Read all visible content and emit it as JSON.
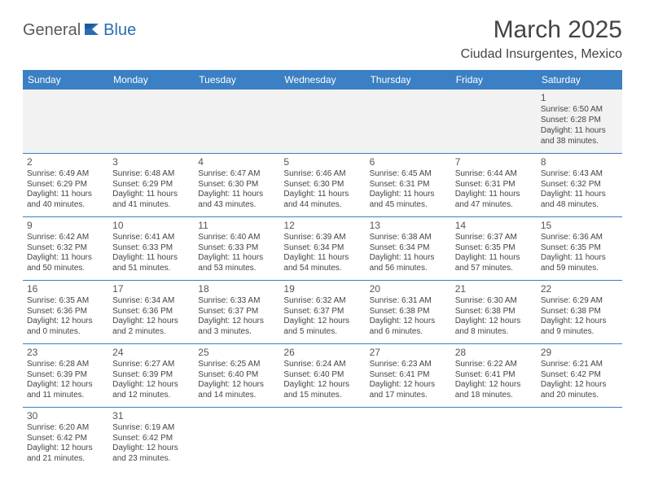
{
  "logo": {
    "text1": "General",
    "text2": "Blue"
  },
  "title": "March 2025",
  "location": "Ciudad Insurgentes, Mexico",
  "colors": {
    "header_bg": "#3b7fc4",
    "header_fg": "#ffffff",
    "rule": "#3b7fc4",
    "text": "#444444",
    "firstrow_bg": "#f2f2f2",
    "logo_gray": "#5a5a5a",
    "logo_blue": "#2a6db5"
  },
  "day_headers": [
    "Sunday",
    "Monday",
    "Tuesday",
    "Wednesday",
    "Thursday",
    "Friday",
    "Saturday"
  ],
  "weeks": [
    [
      null,
      null,
      null,
      null,
      null,
      null,
      {
        "n": "1",
        "sr": "Sunrise: 6:50 AM",
        "ss": "Sunset: 6:28 PM",
        "dl": "Daylight: 11 hours and 38 minutes."
      }
    ],
    [
      {
        "n": "2",
        "sr": "Sunrise: 6:49 AM",
        "ss": "Sunset: 6:29 PM",
        "dl": "Daylight: 11 hours and 40 minutes."
      },
      {
        "n": "3",
        "sr": "Sunrise: 6:48 AM",
        "ss": "Sunset: 6:29 PM",
        "dl": "Daylight: 11 hours and 41 minutes."
      },
      {
        "n": "4",
        "sr": "Sunrise: 6:47 AM",
        "ss": "Sunset: 6:30 PM",
        "dl": "Daylight: 11 hours and 43 minutes."
      },
      {
        "n": "5",
        "sr": "Sunrise: 6:46 AM",
        "ss": "Sunset: 6:30 PM",
        "dl": "Daylight: 11 hours and 44 minutes."
      },
      {
        "n": "6",
        "sr": "Sunrise: 6:45 AM",
        "ss": "Sunset: 6:31 PM",
        "dl": "Daylight: 11 hours and 45 minutes."
      },
      {
        "n": "7",
        "sr": "Sunrise: 6:44 AM",
        "ss": "Sunset: 6:31 PM",
        "dl": "Daylight: 11 hours and 47 minutes."
      },
      {
        "n": "8",
        "sr": "Sunrise: 6:43 AM",
        "ss": "Sunset: 6:32 PM",
        "dl": "Daylight: 11 hours and 48 minutes."
      }
    ],
    [
      {
        "n": "9",
        "sr": "Sunrise: 6:42 AM",
        "ss": "Sunset: 6:32 PM",
        "dl": "Daylight: 11 hours and 50 minutes."
      },
      {
        "n": "10",
        "sr": "Sunrise: 6:41 AM",
        "ss": "Sunset: 6:33 PM",
        "dl": "Daylight: 11 hours and 51 minutes."
      },
      {
        "n": "11",
        "sr": "Sunrise: 6:40 AM",
        "ss": "Sunset: 6:33 PM",
        "dl": "Daylight: 11 hours and 53 minutes."
      },
      {
        "n": "12",
        "sr": "Sunrise: 6:39 AM",
        "ss": "Sunset: 6:34 PM",
        "dl": "Daylight: 11 hours and 54 minutes."
      },
      {
        "n": "13",
        "sr": "Sunrise: 6:38 AM",
        "ss": "Sunset: 6:34 PM",
        "dl": "Daylight: 11 hours and 56 minutes."
      },
      {
        "n": "14",
        "sr": "Sunrise: 6:37 AM",
        "ss": "Sunset: 6:35 PM",
        "dl": "Daylight: 11 hours and 57 minutes."
      },
      {
        "n": "15",
        "sr": "Sunrise: 6:36 AM",
        "ss": "Sunset: 6:35 PM",
        "dl": "Daylight: 11 hours and 59 minutes."
      }
    ],
    [
      {
        "n": "16",
        "sr": "Sunrise: 6:35 AM",
        "ss": "Sunset: 6:36 PM",
        "dl": "Daylight: 12 hours and 0 minutes."
      },
      {
        "n": "17",
        "sr": "Sunrise: 6:34 AM",
        "ss": "Sunset: 6:36 PM",
        "dl": "Daylight: 12 hours and 2 minutes."
      },
      {
        "n": "18",
        "sr": "Sunrise: 6:33 AM",
        "ss": "Sunset: 6:37 PM",
        "dl": "Daylight: 12 hours and 3 minutes."
      },
      {
        "n": "19",
        "sr": "Sunrise: 6:32 AM",
        "ss": "Sunset: 6:37 PM",
        "dl": "Daylight: 12 hours and 5 minutes."
      },
      {
        "n": "20",
        "sr": "Sunrise: 6:31 AM",
        "ss": "Sunset: 6:38 PM",
        "dl": "Daylight: 12 hours and 6 minutes."
      },
      {
        "n": "21",
        "sr": "Sunrise: 6:30 AM",
        "ss": "Sunset: 6:38 PM",
        "dl": "Daylight: 12 hours and 8 minutes."
      },
      {
        "n": "22",
        "sr": "Sunrise: 6:29 AM",
        "ss": "Sunset: 6:38 PM",
        "dl": "Daylight: 12 hours and 9 minutes."
      }
    ],
    [
      {
        "n": "23",
        "sr": "Sunrise: 6:28 AM",
        "ss": "Sunset: 6:39 PM",
        "dl": "Daylight: 12 hours and 11 minutes."
      },
      {
        "n": "24",
        "sr": "Sunrise: 6:27 AM",
        "ss": "Sunset: 6:39 PM",
        "dl": "Daylight: 12 hours and 12 minutes."
      },
      {
        "n": "25",
        "sr": "Sunrise: 6:25 AM",
        "ss": "Sunset: 6:40 PM",
        "dl": "Daylight: 12 hours and 14 minutes."
      },
      {
        "n": "26",
        "sr": "Sunrise: 6:24 AM",
        "ss": "Sunset: 6:40 PM",
        "dl": "Daylight: 12 hours and 15 minutes."
      },
      {
        "n": "27",
        "sr": "Sunrise: 6:23 AM",
        "ss": "Sunset: 6:41 PM",
        "dl": "Daylight: 12 hours and 17 minutes."
      },
      {
        "n": "28",
        "sr": "Sunrise: 6:22 AM",
        "ss": "Sunset: 6:41 PM",
        "dl": "Daylight: 12 hours and 18 minutes."
      },
      {
        "n": "29",
        "sr": "Sunrise: 6:21 AM",
        "ss": "Sunset: 6:42 PM",
        "dl": "Daylight: 12 hours and 20 minutes."
      }
    ],
    [
      {
        "n": "30",
        "sr": "Sunrise: 6:20 AM",
        "ss": "Sunset: 6:42 PM",
        "dl": "Daylight: 12 hours and 21 minutes."
      },
      {
        "n": "31",
        "sr": "Sunrise: 6:19 AM",
        "ss": "Sunset: 6:42 PM",
        "dl": "Daylight: 12 hours and 23 minutes."
      },
      null,
      null,
      null,
      null,
      null
    ]
  ]
}
